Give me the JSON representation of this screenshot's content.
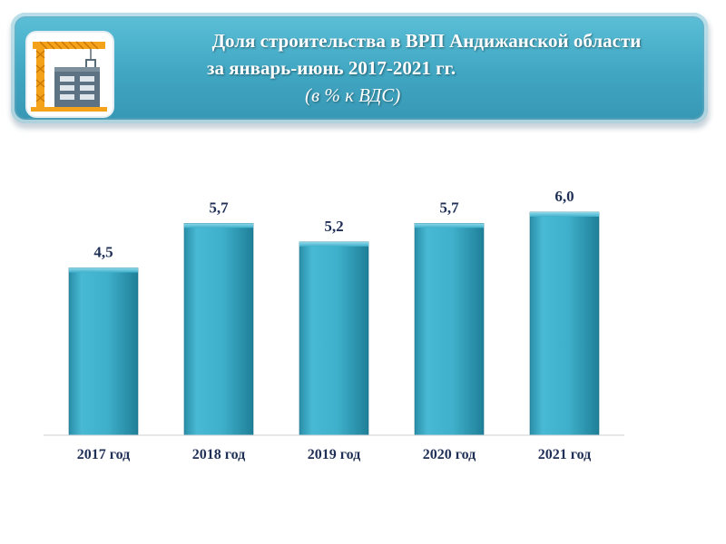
{
  "header": {
    "title_line1": "Доля строительства в ВРП Андижанской области",
    "title_line2": "за январь-июнь 2017-2021 гг.",
    "title_line3": "(в % к ВДС)",
    "logo_icon": "construction-crane-icon"
  },
  "colors": {
    "banner": "#45abc6",
    "bar": "#3eb0cc",
    "bar_dark": "#1e7f98",
    "text": "#1f2f56"
  },
  "chart_data": {
    "type": "bar",
    "categories": [
      "2017 год",
      "2018 год",
      "2019 год",
      "2020 год",
      "2021 год"
    ],
    "values": [
      4.5,
      5.7,
      5.2,
      5.7,
      6.0
    ],
    "value_labels": [
      "4,5",
      "5,7",
      "5,2",
      "5,7",
      "6,0"
    ],
    "ylim": [
      0,
      6.5
    ],
    "grid": false,
    "legend": "none"
  }
}
